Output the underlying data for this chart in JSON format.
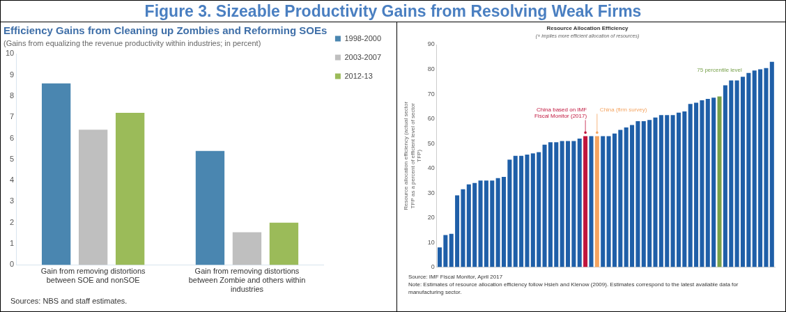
{
  "chart_data": [
    {
      "type": "bar",
      "title": "Efficiency Gains from Cleaning up Zombies and Reforming SOEs",
      "subtitle": "(Gains from equalizing the revenue productivity within industries; in percent)",
      "categories": [
        "Gain from removing distortions between SOE and nonSOE",
        "Gain from removing distortions between Zombie and others within industries"
      ],
      "series": [
        {
          "name": "1998-2000",
          "color": "#4a86b0",
          "values": [
            8.6,
            5.4
          ]
        },
        {
          "name": "2003-2007",
          "color": "#bfbfbf",
          "values": [
            6.4,
            1.55
          ]
        },
        {
          "name": "2012-13",
          "color": "#9bbb59",
          "values": [
            7.2,
            2.0
          ]
        }
      ],
      "ylim": [
        0,
        10
      ],
      "yticks": [
        0,
        1,
        2,
        3,
        4,
        5,
        6,
        7,
        8,
        9,
        10
      ],
      "legend": "top right",
      "annotations": [
        "Figure 3. Sizeable Productivity Gains from Resolving Weak Firms",
        "Sources: NBS and staff estimates."
      ]
    },
    {
      "type": "bar",
      "title": "Resource Allocation Efficiency",
      "subtitle": "(+ implies more efficient allocation of resources)",
      "ylabel": "Resource allocation efficiency (actual sector TFP as a percent of efficient level of sector TFP)",
      "categories": [
        null,
        null,
        null,
        null,
        null,
        null,
        null,
        null,
        null,
        null,
        null,
        null,
        null,
        null,
        null,
        null,
        null,
        null,
        null,
        null,
        null,
        null,
        null,
        null,
        null,
        null,
        null,
        null,
        null,
        null,
        null,
        null,
        null,
        null,
        null,
        null,
        null,
        null,
        null,
        null,
        null,
        null,
        null,
        null,
        null,
        null,
        null,
        null,
        null,
        null,
        null,
        null,
        null,
        null,
        null,
        null,
        null,
        null
      ],
      "values": [
        8,
        13,
        13.5,
        29,
        31.5,
        33.5,
        34,
        35,
        35,
        35,
        36,
        36.5,
        43.5,
        45,
        45,
        45.5,
        46,
        46.5,
        49.5,
        50.5,
        50.5,
        51,
        51,
        51,
        52,
        53,
        53,
        53,
        53,
        53,
        54,
        55.5,
        56.5,
        57.5,
        59,
        59,
        59.5,
        60.5,
        61.5,
        61.5,
        61.5,
        62.5,
        63,
        66,
        66.5,
        67.5,
        68,
        68.5,
        69,
        73.5,
        75.5,
        75.5,
        77,
        78.5,
        79.5,
        80,
        80.5,
        83
      ],
      "colors": [
        "#1f5fa8",
        "#1f5fa8",
        "#1f5fa8",
        "#1f5fa8",
        "#1f5fa8",
        "#1f5fa8",
        "#1f5fa8",
        "#1f5fa8",
        "#1f5fa8",
        "#1f5fa8",
        "#1f5fa8",
        "#1f5fa8",
        "#1f5fa8",
        "#1f5fa8",
        "#1f5fa8",
        "#1f5fa8",
        "#1f5fa8",
        "#1f5fa8",
        "#1f5fa8",
        "#1f5fa8",
        "#1f5fa8",
        "#1f5fa8",
        "#1f5fa8",
        "#1f5fa8",
        "#1f5fa8",
        "#c0143c",
        "#1f5fa8",
        "#f4a460",
        "#1f5fa8",
        "#1f5fa8",
        "#1f5fa8",
        "#1f5fa8",
        "#1f5fa8",
        "#1f5fa8",
        "#1f5fa8",
        "#1f5fa8",
        "#1f5fa8",
        "#1f5fa8",
        "#1f5fa8",
        "#1f5fa8",
        "#1f5fa8",
        "#1f5fa8",
        "#1f5fa8",
        "#1f5fa8",
        "#1f5fa8",
        "#1f5fa8",
        "#1f5fa8",
        "#1f5fa8",
        "#77a04a",
        "#1f5fa8",
        "#1f5fa8",
        "#1f5fa8",
        "#1f5fa8",
        "#1f5fa8",
        "#1f5fa8",
        "#1f5fa8",
        "#1f5fa8",
        "#1f5fa8"
      ],
      "ylim": [
        0,
        90
      ],
      "yticks": [
        0,
        10,
        20,
        30,
        40,
        50,
        60,
        70,
        80,
        90
      ],
      "tick_labels": "y",
      "annotations": [
        "China based on IMF Fiscal Monitor (2017)",
        "China (firm survey)",
        "75 percentile level",
        "Source: IMF Fiscal Monitor, April 2017",
        "Note: Estimates of resource allocation efficiency follow Hsieh and Klenow (2009). Estimates correspond to the latest available data for manufacturing sector."
      ]
    }
  ]
}
